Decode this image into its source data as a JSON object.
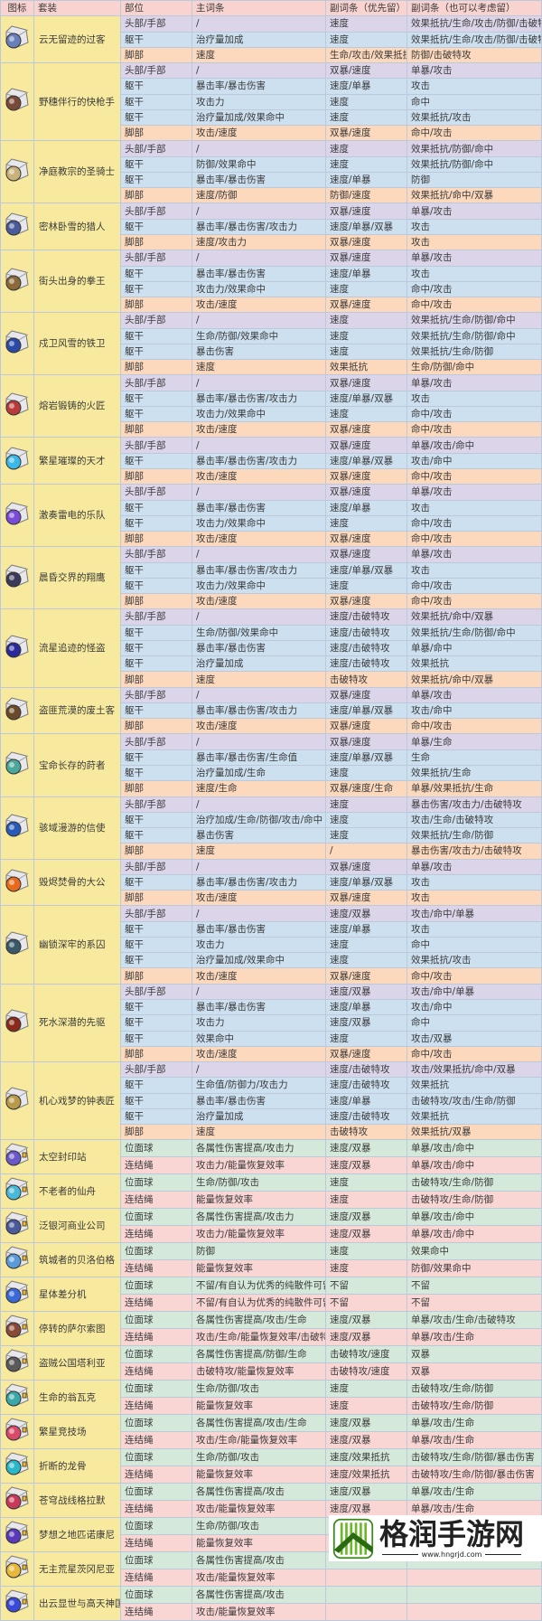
{
  "header": [
    "图标",
    "套装",
    "部位",
    "主词条",
    "副词条（优先留）",
    "副词条（也可以考虑留）"
  ],
  "sets": [
    {
      "name": "云无留迹的过客",
      "icon": "relic-icon",
      "color": "#6a7fb8",
      "rows": [
        [
          "头部/手部",
          "/",
          "速度",
          "效果抵抗/生命/攻击/防御/击破特攻"
        ],
        [
          "躯干",
          "治疗量加成",
          "速度",
          "效果抵抗/生命/攻击/防御/击破特攻"
        ],
        [
          "脚部",
          "速度",
          "生命/攻击/效果抵抗",
          "防御/击破特攻"
        ]
      ]
    },
    {
      "name": "野穗伴行的快枪手",
      "icon": "relic-icon",
      "color": "#7a4a38",
      "rows": [
        [
          "头部/手部",
          "/",
          "双暴/速度",
          "单暴/攻击"
        ],
        [
          "躯干",
          "暴击率/暴击伤害",
          "速度/单暴",
          "攻击"
        ],
        [
          "躯干",
          "攻击力",
          "速度",
          "命中"
        ],
        [
          "躯干",
          "治疗量加成/效果命中",
          "速度",
          "效果抵抗/攻击"
        ],
        [
          "脚部",
          "攻击/速度",
          "双暴/速度",
          "命中/攻击"
        ]
      ]
    },
    {
      "name": "净庭教宗的圣骑士",
      "icon": "relic-icon",
      "color": "#c9b27a",
      "rows": [
        [
          "头部/手部",
          "/",
          "速度",
          "效果抵抗/防御/命中"
        ],
        [
          "躯干",
          "防御/效果命中",
          "速度",
          "效果抵抗/防御/命中"
        ],
        [
          "躯干",
          "暴击率/暴击伤害",
          "速度/单暴",
          "防御"
        ],
        [
          "脚部",
          "速度/防御",
          "防御/速度",
          "效果抵抗/命中/双暴"
        ]
      ]
    },
    {
      "name": "密林卧雪的猎人",
      "icon": "relic-icon",
      "color": "#4a5a9a",
      "rows": [
        [
          "头部/手部",
          "/",
          "双暴/速度",
          "单暴/攻击"
        ],
        [
          "躯干",
          "暴击率/暴击伤害/攻击力",
          "速度/单暴/双暴",
          "攻击"
        ],
        [
          "脚部",
          "速度/攻击力",
          "双暴/速度",
          "攻击"
        ]
      ]
    },
    {
      "name": "街头出身的拳王",
      "icon": "relic-icon",
      "color": "#8a6a3a",
      "rows": [
        [
          "头部/手部",
          "/",
          "双暴/速度",
          "单暴/攻击"
        ],
        [
          "躯干",
          "暴击率/暴击伤害",
          "速度/单暴",
          "攻击"
        ],
        [
          "躯干",
          "攻击力/效果命中",
          "速度",
          "命中/攻击"
        ],
        [
          "脚部",
          "攻击/速度",
          "双暴/速度",
          "命中/攻击"
        ]
      ]
    },
    {
      "name": "戍卫风雪的铁卫",
      "icon": "relic-icon",
      "color": "#2a4aa8",
      "rows": [
        [
          "头部/手部",
          "/",
          "速度",
          "效果抵抗/生命/防御/命中"
        ],
        [
          "躯干",
          "生命/防御/效果命中",
          "速度",
          "效果抵抗/生命/防御/命中"
        ],
        [
          "躯干",
          "暴击伤害",
          "速度",
          "效果抵抗/生命/防御"
        ],
        [
          "脚部",
          "速度",
          "效果抵抗",
          "生命/防御/命中"
        ]
      ]
    },
    {
      "name": "熔岩锻铸的火匠",
      "icon": "relic-icon",
      "color": "#b83a3a",
      "rows": [
        [
          "头部/手部",
          "/",
          "双暴/速度",
          "单暴/攻击"
        ],
        [
          "躯干",
          "暴击率/暴击伤害/攻击力",
          "速度/单暴/双暴",
          "攻击"
        ],
        [
          "躯干",
          "攻击力/效果命中",
          "速度",
          "命中/攻击"
        ],
        [
          "脚部",
          "攻击/速度",
          "双暴/速度",
          "命中/攻击"
        ]
      ]
    },
    {
      "name": "繁星璀璨的天才",
      "icon": "relic-icon",
      "color": "#3ab8e8",
      "rows": [
        [
          "头部/手部",
          "/",
          "双暴/速度",
          "单暴/攻击/命中"
        ],
        [
          "躯干",
          "暴击率/暴击伤害/攻击力",
          "速度/单暴/双暴",
          "攻击/命中"
        ],
        [
          "脚部",
          "攻击/速度",
          "双暴/速度",
          "命中/攻击"
        ]
      ]
    },
    {
      "name": "激奏雷电的乐队",
      "icon": "relic-icon",
      "color": "#7a4ad8",
      "rows": [
        [
          "头部/手部",
          "/",
          "双暴/速度",
          "单暴/攻击"
        ],
        [
          "躯干",
          "暴击率/暴击伤害",
          "速度/单暴",
          "攻击"
        ],
        [
          "躯干",
          "攻击力/效果命中",
          "速度",
          "命中/攻击"
        ],
        [
          "脚部",
          "攻击/速度",
          "双暴/速度",
          "命中/攻击"
        ]
      ]
    },
    {
      "name": "晨昏交界的翔鹰",
      "icon": "relic-icon",
      "color": "#3a3a5a",
      "rows": [
        [
          "头部/手部",
          "/",
          "双暴/速度",
          "单暴/攻击"
        ],
        [
          "躯干",
          "暴击率/暴击伤害/攻击力",
          "速度/单暴/双暴",
          "攻击"
        ],
        [
          "躯干",
          "攻击力/效果命中",
          "速度",
          "命中/攻击"
        ],
        [
          "脚部",
          "攻击/速度",
          "双暴/速度",
          "命中/攻击"
        ]
      ]
    },
    {
      "name": "流星追迹的怪盗",
      "icon": "relic-icon",
      "color": "#2a2a9a",
      "rows": [
        [
          "头部/手部",
          "/",
          "速度/击破特攻",
          "效果抵抗/命中/双暴"
        ],
        [
          "躯干",
          "生命/防御/效果命中",
          "速度/击破特攻",
          "效果抵抗/生命/防御/命中"
        ],
        [
          "躯干",
          "暴击率/暴击伤害",
          "速度/击破特攻",
          "单暴/命中"
        ],
        [
          "躯干",
          "治疗量加成",
          "速度/击破特攻",
          "效果抵抗"
        ],
        [
          "脚部",
          "速度",
          "击破特攻",
          "效果抵抗/命中/双暴"
        ]
      ]
    },
    {
      "name": "盗匪荒漠的废土客",
      "icon": "relic-icon",
      "color": "#6a4a2a",
      "rows": [
        [
          "头部/手部",
          "/",
          "双暴/速度",
          "单暴/攻击"
        ],
        [
          "躯干",
          "暴击率/暴击伤害/攻击力",
          "速度/单暴/双暴",
          "攻击/命中"
        ],
        [
          "脚部",
          "攻击/速度",
          "双暴/速度",
          "命中/攻击"
        ]
      ]
    },
    {
      "name": "宝命长存的莳者",
      "icon": "relic-icon",
      "color": "#4aa89a",
      "rows": [
        [
          "头部/手部",
          "/",
          "双暴/速度",
          "单暴/生命"
        ],
        [
          "躯干",
          "暴击率/暴击伤害/生命值",
          "速度/单暴/双暴",
          "生命"
        ],
        [
          "躯干",
          "治疗量加成/生命",
          "速度",
          "效果抵抗/生命"
        ],
        [
          "脚部",
          "速度/生命",
          "双暴/速度/生命",
          "单暴/效果抵抗/生命"
        ]
      ]
    },
    {
      "name": "骇域漫游的信使",
      "icon": "relic-icon",
      "color": "#2a5ab8",
      "rows": [
        [
          "头部/手部",
          "/",
          "速度",
          "暴击伤害/攻击力/击破特攻"
        ],
        [
          "躯干",
          "治疗加成/生命/防御/攻击/命中",
          "速度",
          "攻击/生命/击破特攻"
        ],
        [
          "躯干",
          "暴击伤害",
          "速度",
          "效果抵抗/生命/防御"
        ],
        [
          "脚部",
          "速度",
          "/",
          "暴击伤害/攻击力/击破特攻"
        ]
      ]
    },
    {
      "name": "毁烬焚骨的大公",
      "icon": "relic-icon",
      "color": "#e86a1a",
      "rows": [
        [
          "头部/手部",
          "/",
          "双暴/速度",
          "单暴/攻击"
        ],
        [
          "躯干",
          "暴击率/暴击伤害/攻击力",
          "速度/单暴/双暴",
          "攻击"
        ],
        [
          "脚部",
          "攻击/速度",
          "双暴/速度",
          "攻击"
        ]
      ]
    },
    {
      "name": "幽锁深牢的系囚",
      "icon": "relic-icon",
      "color": "#3a5a6a",
      "rows": [
        [
          "头部/手部",
          "/",
          "速度/双暴",
          "攻击/命中/单暴"
        ],
        [
          "躯干",
          "暴击率/暴击伤害",
          "速度/单暴",
          "攻击"
        ],
        [
          "躯干",
          "攻击力",
          "速度",
          "命中"
        ],
        [
          "躯干",
          "治疗量加成/效果命中",
          "速度",
          "效果抵抗/攻击"
        ],
        [
          "脚部",
          "攻击/速度",
          "双暴/速度",
          "命中/攻击"
        ]
      ]
    },
    {
      "name": "死水深潜的先驱",
      "icon": "relic-icon",
      "color": "#8a2a1a",
      "rows": [
        [
          "头部/手部",
          "/",
          "速度/双暴",
          "攻击/命中/单暴"
        ],
        [
          "躯干",
          "暴击率/暴击伤害",
          "速度/单暴",
          "攻击/命中"
        ],
        [
          "躯干",
          "攻击力",
          "速度/双暴",
          "命中"
        ],
        [
          "躯干",
          "效果命中",
          "速度",
          "攻击/双暴"
        ],
        [
          "脚部",
          "攻击/速度",
          "双暴/速度",
          "命中/攻击"
        ]
      ]
    },
    {
      "name": "机心戏梦的钟表匠",
      "icon": "relic-icon",
      "color": "#b89a4a",
      "rows": [
        [
          "头部/手部",
          "/",
          "速度/击破特攻",
          "攻击/效果抵抗/命中/双暴"
        ],
        [
          "躯干",
          "生命值/防御力/攻击力",
          "速度/击破特攻",
          "效果抵抗"
        ],
        [
          "躯干",
          "暴击率/暴击伤害",
          "速度/单暴",
          "击破特攻/攻击/生命/防御"
        ],
        [
          "躯干",
          "治疗量加成",
          "速度/击破特攻",
          "效果抵抗"
        ],
        [
          "脚部",
          "速度",
          "击破特攻",
          "效果抵抗/双暴"
        ]
      ]
    },
    {
      "name": "太空封印站",
      "icon": "planar-icon",
      "color": "#6a5ac8",
      "rows": [
        [
          "位面球",
          "各属性伤害提高/攻击力",
          "速度/双暴",
          "单暴/攻击/命中"
        ],
        [
          "连结绳",
          "攻击力/能量恢复效率",
          "速度/双暴",
          "单暴/攻击/命中"
        ]
      ]
    },
    {
      "name": "不老者的仙舟",
      "icon": "planar-icon",
      "color": "#4ab8d8",
      "rows": [
        [
          "位面球",
          "生命/防御/攻击",
          "速度",
          "击破特攻/生命/防御"
        ],
        [
          "连结绳",
          "能量恢复效率",
          "速度",
          "击破特攻/生命/防御"
        ]
      ]
    },
    {
      "name": "泛银河商业公司",
      "icon": "planar-icon",
      "color": "#4a5a9a",
      "rows": [
        [
          "位面球",
          "各属性伤害提高/攻击力",
          "速度/双暴",
          "单暴/攻击/命中"
        ],
        [
          "连结绳",
          "攻击力/能量恢复效率",
          "速度/双暴",
          "单暴/攻击/命中"
        ]
      ]
    },
    {
      "name": "筑城者的贝洛伯格",
      "icon": "planar-icon",
      "color": "#5a9ad8",
      "rows": [
        [
          "位面球",
          "防御",
          "速度",
          "效果命中"
        ],
        [
          "连结绳",
          "能量恢复效率",
          "速度",
          "防御/效果命中"
        ]
      ]
    },
    {
      "name": "星体差分机",
      "icon": "planar-icon",
      "color": "#3a6ad8",
      "rows": [
        [
          "位面球",
          "不留/有自认为优秀的纯散件可留",
          "不留",
          "不留"
        ],
        [
          "连结绳",
          "不留/有自认为优秀的纯散件可留",
          "不留",
          "不留"
        ]
      ]
    },
    {
      "name": "停转的萨尔索图",
      "icon": "planar-icon",
      "color": "#8a4a3a",
      "rows": [
        [
          "位面球",
          "各属性伤害提高/攻击/生命",
          "速度/双暴",
          "单暴/攻击/生命/击破特攻"
        ],
        [
          "连结绳",
          "攻击/生命/能量恢复效率/击破特攻",
          "速度/双暴",
          "单暴/攻击/生命"
        ]
      ]
    },
    {
      "name": "盗贼公国塔利亚",
      "icon": "planar-icon",
      "color": "#5a5a5a",
      "rows": [
        [
          "位面球",
          "各属性伤害提高/防御/生命",
          "击破特攻/速度",
          "双暴"
        ],
        [
          "连结绳",
          "击破特攻/能量恢复效率",
          "击破特攻/速度",
          "双暴"
        ]
      ]
    },
    {
      "name": "生命的翁瓦克",
      "icon": "planar-icon",
      "color": "#3aa8a8",
      "rows": [
        [
          "位面球",
          "生命/防御/攻击",
          "速度",
          "击破特攻/生命/防御"
        ],
        [
          "连结绳",
          "能量恢复效率",
          "速度",
          "击破特攻/生命/防御"
        ]
      ]
    },
    {
      "name": "繁星竞技场",
      "icon": "planar-icon",
      "color": "#d84a6a",
      "rows": [
        [
          "位面球",
          "各属性伤害提高/攻击/生命",
          "速度/双暴",
          "单暴/攻击/生命"
        ],
        [
          "连结绳",
          "攻击/生命/能量恢复效率",
          "速度/双暴",
          "单暴/攻击/生命"
        ]
      ]
    },
    {
      "name": "折断的龙骨",
      "icon": "planar-icon",
      "color": "#2ab8c8",
      "rows": [
        [
          "位面球",
          "生命/防御/攻击",
          "速度/效果抵抗",
          "击破特攻/生命/防御/暴击伤害"
        ],
        [
          "连结绳",
          "能量恢复效率",
          "速度/效果抵抗",
          "击破特攻/生命/防御/暴击伤害"
        ]
      ]
    },
    {
      "name": "苍穹战线格拉默",
      "icon": "planar-icon",
      "color": "#c83a5a",
      "rows": [
        [
          "位面球",
          "各属性伤害提高/攻击",
          "速度/双暴",
          "单暴/攻击/生命"
        ],
        [
          "连结绳",
          "攻击/能量恢复效率",
          "速度/双暴",
          "单暴/攻击/生命"
        ]
      ]
    },
    {
      "name": "梦想之地匹诺康尼",
      "icon": "planar-icon",
      "color": "#5a3ab8",
      "rows": [
        [
          "位面球",
          "生命/防御/攻击",
          "速度",
          "击破特攻/生命/防御/暴击伤害"
        ],
        [
          "连结绳",
          "能量恢复效率",
          "速度",
          "击破特攻/生命/防御/暴击伤害"
        ]
      ]
    },
    {
      "name": "无主荒星茨冈尼亚",
      "icon": "planar-icon",
      "color": "#e8b83a",
      "rows": [
        [
          "位面球",
          "各属性伤害提高/攻击",
          "",
          ""
        ],
        [
          "连结绳",
          "攻击/能量恢复效率",
          "",
          ""
        ]
      ]
    },
    {
      "name": "出云显世与高天神国",
      "icon": "planar-icon",
      "color": "#3a4ad8",
      "rows": [
        [
          "位面球",
          "各属性伤害提高/攻击",
          "",
          ""
        ],
        [
          "连结绳",
          "攻击/能量恢复效率",
          "",
          ""
        ]
      ]
    }
  ],
  "watermark": {
    "brand": "格润手游网",
    "url": "www.hngrjd.com",
    "color": "#3a8a1a"
  }
}
